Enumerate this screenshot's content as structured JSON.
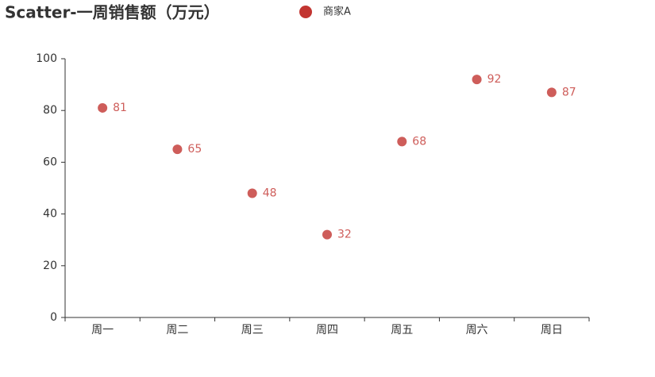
{
  "chart_data": {
    "type": "scatter",
    "title": "Scatter-一周销售额（万元）",
    "categories": [
      "周一",
      "周二",
      "周三",
      "周四",
      "周五",
      "周六",
      "周日"
    ],
    "series": [
      {
        "name": "商家A",
        "color": "#c23531",
        "values": [
          81,
          65,
          48,
          32,
          68,
          92,
          87
        ]
      }
    ],
    "ylim": [
      0,
      100
    ],
    "yticks": [
      0,
      20,
      40,
      60,
      80,
      100
    ],
    "grid": false,
    "legend": "top"
  }
}
